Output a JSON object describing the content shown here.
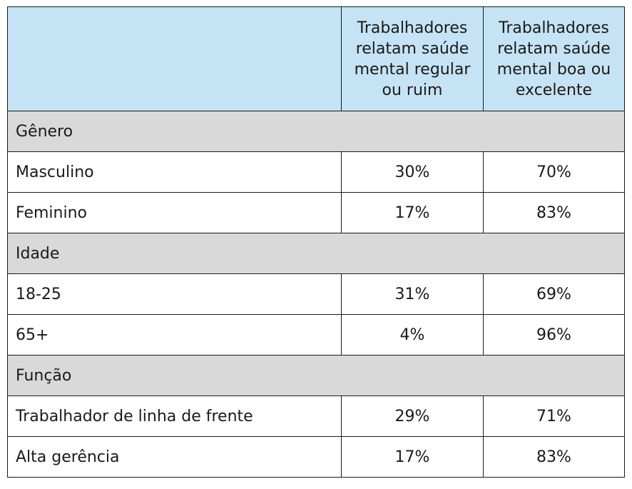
{
  "chart_data": {
    "type": "table",
    "columns": [
      "",
      "Trabalhadores relatam saúde mental regular ou ruim",
      "Trabalhadores relatam saúde mental boa ou excelente"
    ],
    "groups": [
      {
        "name": "Gênero",
        "rows": [
          {
            "label": "Masculino",
            "values": [
              "30%",
              "70%"
            ]
          },
          {
            "label": "Feminino",
            "values": [
              "17%",
              "83%"
            ]
          }
        ]
      },
      {
        "name": "Idade",
        "rows": [
          {
            "label": "18-25",
            "values": [
              "31%",
              "69%"
            ]
          },
          {
            "label": "65+",
            "values": [
              "4%",
              "96%"
            ]
          }
        ]
      },
      {
        "name": "Função",
        "rows": [
          {
            "label": "Trabalhador de linha de frente",
            "values": [
              "29%",
              "71%"
            ]
          },
          {
            "label": "Alta gerência",
            "values": [
              "17%",
              "83%"
            ]
          }
        ]
      }
    ]
  },
  "colors": {
    "header_bg": "#c5e3f4",
    "group_bg": "#d9d9d9",
    "border": "#1a1a1a"
  }
}
